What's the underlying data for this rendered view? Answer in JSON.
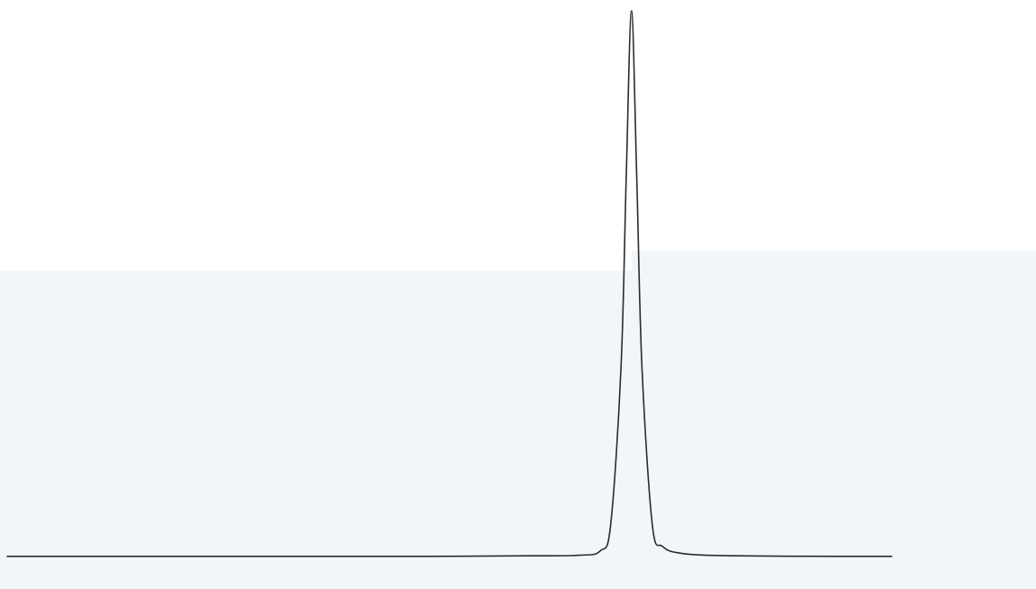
{
  "chart_data": {
    "type": "line",
    "title": "",
    "xlabel": "",
    "ylabel": "",
    "series": [
      {
        "x": [
          0,
          10,
          20,
          30,
          40,
          50,
          55,
          57,
          58,
          59,
          59.5,
          60,
          60.5,
          61,
          62,
          63,
          65,
          70,
          80,
          85
        ],
        "y": [
          0.002,
          0.002,
          0.002,
          0.002,
          0.002,
          0.003,
          0.004,
          0.012,
          0.06,
          0.35,
          0.7,
          1.0,
          0.7,
          0.35,
          0.06,
          0.02,
          0.007,
          0.003,
          0.002,
          0.002
        ]
      }
    ],
    "peak": {
      "x": 60,
      "y": 1.0
    },
    "xlim": [
      0,
      85
    ],
    "ylim": [
      0,
      1
    ],
    "grid": false,
    "axes_visible": false,
    "line_color": "#2b2b2b",
    "paper_color": "#ffffff",
    "lower_band_color": "#f1f6fa"
  }
}
